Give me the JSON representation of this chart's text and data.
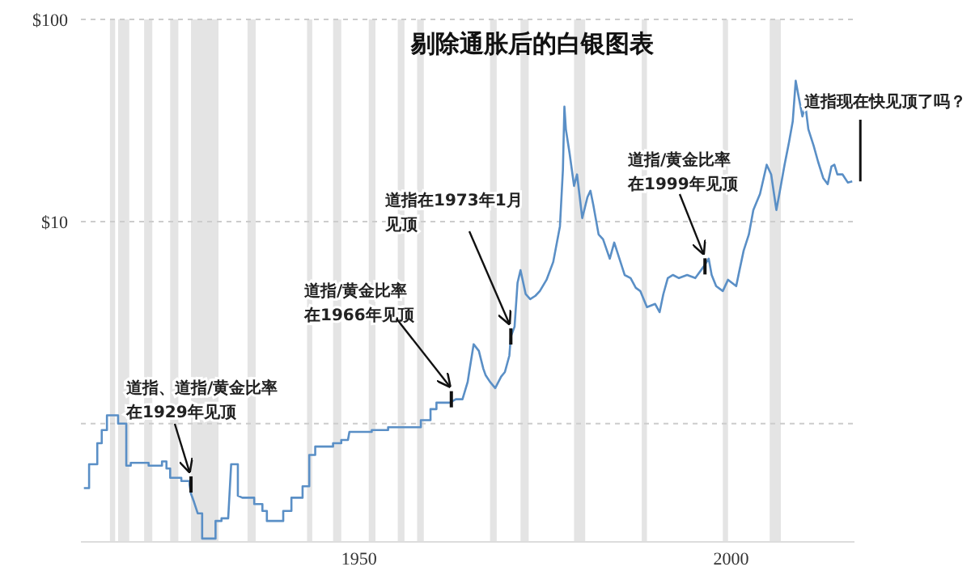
{
  "chart_data": {
    "type": "line",
    "title": "剔除通胀后的白银图表",
    "x": [
      1913.0,
      1913.7,
      1913.7,
      1914.8,
      1914.8,
      1915.4,
      1915.4,
      1916.1,
      1916.1,
      1917.6,
      1917.6,
      1918.7,
      1918.7,
      1919.3,
      1919.3,
      1921.7,
      1921.7,
      1923.5,
      1923.5,
      1924.1,
      1924.1,
      1924.6,
      1924.6,
      1926.1,
      1926.1,
      1927.2,
      1927.2,
      1927.4,
      1927.8,
      1928.3,
      1928.9,
      1928.9,
      1930.7,
      1930.7,
      1931.5,
      1931.5,
      1932.4,
      1932.8,
      1933.7,
      1933.7,
      1934.3,
      1935.9,
      1935.9,
      1937.0,
      1937.0,
      1937.6,
      1937.6,
      1939.8,
      1939.8,
      1940.9,
      1940.9,
      1942.4,
      1942.4,
      1943.3,
      1943.3,
      1944.1,
      1944.1,
      1946.5,
      1946.5,
      1947.6,
      1947.6,
      1948.5,
      1948.7,
      1951.7,
      1951.7,
      1953.9,
      1953.9,
      1958.3,
      1958.3,
      1959.6,
      1959.6,
      1960.4,
      1960.4,
      1962.2,
      1963.0,
      1963.9,
      1964.6,
      1964.8,
      1965.4,
      1966.1,
      1966.7,
      1967.0,
      1967.6,
      1968.3,
      1969.1,
      1969.6,
      1970.2,
      1970.4,
      1970.9,
      1971.3,
      1971.7,
      1972.4,
      1973.0,
      1973.7,
      1974.3,
      1975.2,
      1976.1,
      1977.0,
      1977.4,
      1977.6,
      1977.8,
      1978.3,
      1978.9,
      1979.3,
      1980.0,
      1980.7,
      1981.1,
      1981.5,
      1982.2,
      1982.8,
      1983.7,
      1984.3,
      1985.0,
      1985.7,
      1986.5,
      1987.2,
      1987.8,
      1988.7,
      1989.8,
      1990.4,
      1990.9,
      1991.5,
      1992.2,
      1993.0,
      1994.1,
      1995.2,
      1996.3,
      1997.0,
      1997.4,
      1998.0,
      1998.9,
      1999.6,
      2000.7,
      2001.1,
      2001.7,
      2002.4,
      2003.0,
      2003.9,
      2004.8,
      2005.4,
      2006.1,
      2006.5,
      2007.2,
      2007.8,
      2008.3,
      2008.7,
      2009.1,
      2009.6,
      2010.0,
      2010.4,
      2011.1,
      2011.7,
      2012.4,
      2013.0,
      2013.5,
      2013.9,
      2014.3,
      2015.0,
      2015.7,
      2016.3
    ],
    "series": [
      {
        "color": "#5a8fc6",
        "values": [
          0.48,
          0.48,
          0.63,
          0.63,
          0.8,
          0.8,
          0.93,
          0.93,
          1.1,
          1.1,
          1.0,
          1.0,
          0.62,
          0.62,
          0.64,
          0.64,
          0.62,
          0.62,
          0.65,
          0.65,
          0.6,
          0.6,
          0.54,
          0.54,
          0.52,
          0.52,
          0.5,
          0.45,
          0.41,
          0.36,
          0.36,
          0.27,
          0.27,
          0.33,
          0.33,
          0.34,
          0.34,
          0.63,
          0.63,
          0.44,
          0.43,
          0.43,
          0.4,
          0.4,
          0.37,
          0.37,
          0.33,
          0.33,
          0.37,
          0.37,
          0.43,
          0.43,
          0.49,
          0.49,
          0.7,
          0.7,
          0.77,
          0.77,
          0.8,
          0.8,
          0.83,
          0.83,
          0.91,
          0.91,
          0.93,
          0.93,
          0.96,
          0.96,
          1.04,
          1.04,
          1.18,
          1.18,
          1.27,
          1.27,
          1.32,
          1.32,
          1.61,
          1.8,
          2.47,
          2.29,
          1.87,
          1.74,
          1.61,
          1.5,
          1.71,
          1.8,
          2.17,
          2.7,
          3.02,
          4.97,
          5.75,
          4.37,
          4.13,
          4.29,
          4.53,
          5.15,
          6.31,
          9.46,
          18.0,
          37.0,
          28.6,
          21.7,
          15.0,
          17.1,
          10.4,
          13.2,
          14.2,
          12.0,
          8.63,
          8.17,
          6.55,
          7.87,
          6.55,
          5.44,
          5.25,
          4.7,
          4.53,
          3.77,
          3.91,
          3.56,
          4.37,
          5.25,
          5.44,
          5.25,
          5.44,
          5.25,
          5.97,
          6.55,
          5.44,
          4.79,
          4.53,
          5.15,
          4.79,
          5.65,
          7.18,
          8.63,
          11.4,
          13.7,
          19.1,
          17.1,
          11.4,
          13.7,
          19.1,
          24.7,
          31.3,
          49.7,
          41.3,
          33.1,
          37.7,
          28.6,
          23.8,
          19.8,
          16.4,
          15.3,
          18.7,
          19.1,
          17.1,
          17.1,
          15.6,
          15.8
        ]
      }
    ],
    "xlim": [
      1912.6,
      2016.6
    ],
    "xticks": [
      1950,
      2000
    ],
    "ylim": [
      0.26,
      100
    ],
    "yticks": [
      {
        "value": 1,
        "label": null
      },
      {
        "value": 10,
        "label": "$10"
      },
      {
        "value": 100,
        "label": "$100"
      }
    ],
    "log": true,
    "grid": "y",
    "bands": [
      {
        "axis": "x",
        "from": 1916.5,
        "to": 1917.2,
        "color": "#e4e4e4"
      },
      {
        "axis": "x",
        "from": 1917.6,
        "to": 1919.1,
        "color": "#e4e4e4"
      },
      {
        "axis": "x",
        "from": 1921.1,
        "to": 1922.2,
        "color": "#e4e4e4"
      },
      {
        "axis": "x",
        "from": 1924.6,
        "to": 1925.7,
        "color": "#e4e4e4"
      },
      {
        "axis": "x",
        "from": 1927.4,
        "to": 1931.1,
        "color": "#e4e4e4"
      },
      {
        "axis": "x",
        "from": 1935.0,
        "to": 1936.1,
        "color": "#e4e4e4"
      },
      {
        "axis": "x",
        "from": 1943.0,
        "to": 1943.7,
        "color": "#e4e4e4"
      },
      {
        "axis": "x",
        "from": 1946.5,
        "to": 1947.6,
        "color": "#e4e4e4"
      },
      {
        "axis": "x",
        "from": 1951.3,
        "to": 1952.2,
        "color": "#e4e4e4"
      },
      {
        "axis": "x",
        "from": 1955.2,
        "to": 1956.1,
        "color": "#e4e4e4"
      },
      {
        "axis": "x",
        "from": 1957.8,
        "to": 1958.7,
        "color": "#e4e4e4"
      },
      {
        "axis": "x",
        "from": 1967.6,
        "to": 1968.5,
        "color": "#e4e4e4"
      },
      {
        "axis": "x",
        "from": 1971.7,
        "to": 1972.8,
        "color": "#e4e4e4"
      },
      {
        "axis": "x",
        "from": 1978.9,
        "to": 1980.4,
        "color": "#e4e4e4"
      },
      {
        "axis": "x",
        "from": 1988.0,
        "to": 1988.7,
        "color": "#e4e4e4"
      },
      {
        "axis": "x",
        "from": 1998.9,
        "to": 1999.6,
        "color": "#e4e4e4"
      },
      {
        "axis": "x",
        "from": 2005.2,
        "to": 2006.7,
        "color": "#e4e4e4"
      }
    ],
    "annotations": [
      {
        "text": "道指、道指/黄金比率在1929年见顶",
        "x": 1927.4,
        "y": 0.5
      },
      {
        "text": "道指/黄金比率在1966年见顶",
        "x": 1962.4,
        "y": 1.32
      },
      {
        "text": "道指在1973年1月见顶",
        "x": 1970.4,
        "y": 2.7
      },
      {
        "text": "道指/黄金比率在1999年见顶",
        "x": 1996.5,
        "y": 6.0
      },
      {
        "text": "道指现在快见顶了吗？",
        "x": 2016.3,
        "y": 15.8
      }
    ]
  }
}
